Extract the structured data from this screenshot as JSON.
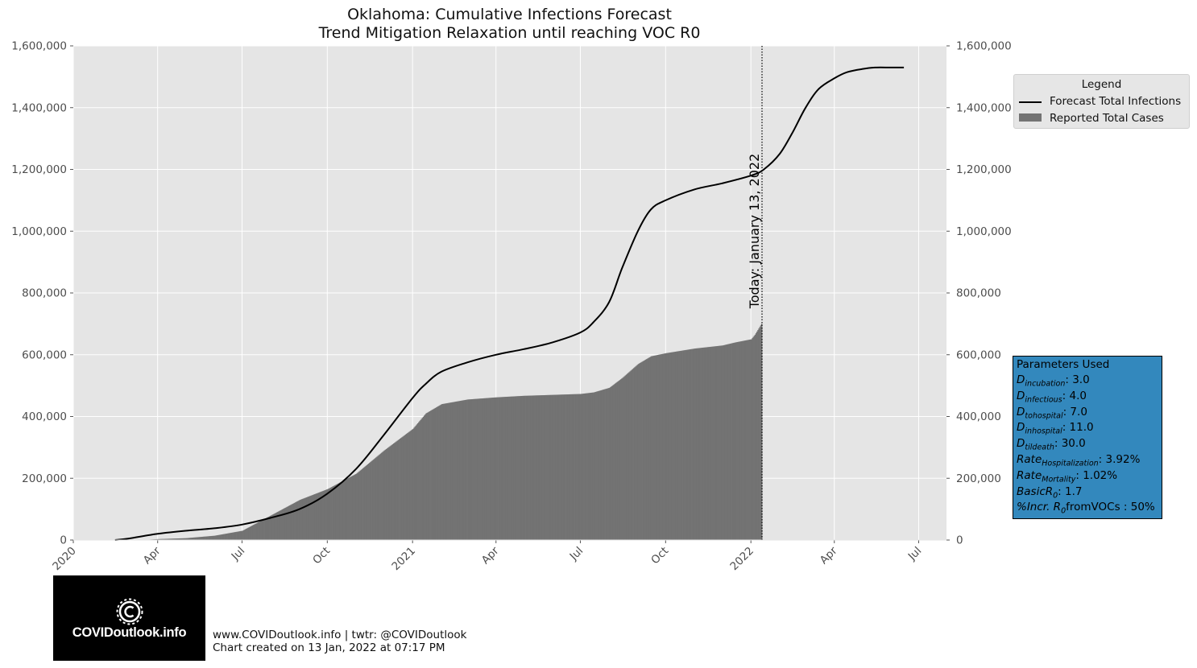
{
  "chart_data": {
    "type": "line",
    "title": "Oklahoma: Cumulative Infections Forecast",
    "subtitle": "Trend Mitigation Relaxation until reaching VOC R0",
    "ylim": [
      0,
      1600000
    ],
    "y_ticks": [
      "0",
      "200,000",
      "400,000",
      "600,000",
      "800,000",
      "1,000,000",
      "1,200,000",
      "1,400,000",
      "1,600,000"
    ],
    "y_tick_values": [
      0,
      200000,
      400000,
      600000,
      800000,
      1000000,
      1200000,
      1400000,
      1600000
    ],
    "x_ticks": [
      "2020",
      "Apr",
      "Jul",
      "Oct",
      "2021",
      "Apr",
      "Jul",
      "Oct",
      "2022",
      "Apr",
      "Jul"
    ],
    "x_tick_dates": [
      "2020-01-01",
      "2020-04-01",
      "2020-07-01",
      "2020-10-01",
      "2021-01-01",
      "2021-04-01",
      "2021-07-01",
      "2021-10-01",
      "2022-01-01",
      "2022-04-01",
      "2022-07-01"
    ],
    "xlim": [
      "2020-01-01",
      "2022-07-31"
    ],
    "grid": true,
    "legend_title": "Legend",
    "legend_position": "right",
    "today_label": "Today: January 13, 2022",
    "today_date": "2022-01-13",
    "series": [
      {
        "name": "Forecast Total Infections",
        "type": "line",
        "color": "#000000",
        "x": [
          "2020-02-15",
          "2020-03-01",
          "2020-04-01",
          "2020-05-01",
          "2020-06-01",
          "2020-07-01",
          "2020-08-01",
          "2020-09-01",
          "2020-10-01",
          "2020-11-01",
          "2020-12-01",
          "2021-01-01",
          "2021-01-15",
          "2021-02-01",
          "2021-03-01",
          "2021-04-01",
          "2021-05-01",
          "2021-06-01",
          "2021-07-01",
          "2021-07-15",
          "2021-08-01",
          "2021-08-15",
          "2021-09-01",
          "2021-09-15",
          "2021-10-01",
          "2021-11-01",
          "2021-12-01",
          "2022-01-01",
          "2022-01-15",
          "2022-02-01",
          "2022-02-15",
          "2022-03-01",
          "2022-03-15",
          "2022-04-01",
          "2022-04-15",
          "2022-05-01",
          "2022-05-15",
          "2022-06-01",
          "2022-06-15"
        ],
        "y": [
          0,
          5000,
          20000,
          30000,
          38000,
          50000,
          72000,
          100000,
          150000,
          230000,
          340000,
          460000,
          505000,
          545000,
          575000,
          600000,
          618000,
          640000,
          672000,
          705000,
          770000,
          880000,
          1000000,
          1070000,
          1100000,
          1135000,
          1155000,
          1180000,
          1200000,
          1250000,
          1320000,
          1400000,
          1460000,
          1495000,
          1515000,
          1525000,
          1530000,
          1530000,
          1530000
        ]
      },
      {
        "name": "Reported Total Cases",
        "type": "bar",
        "color": "#737373",
        "x": [
          "2020-03-15",
          "2020-04-01",
          "2020-05-01",
          "2020-06-01",
          "2020-07-01",
          "2020-08-01",
          "2020-09-01",
          "2020-10-01",
          "2020-11-01",
          "2020-12-01",
          "2021-01-01",
          "2021-01-15",
          "2021-02-01",
          "2021-03-01",
          "2021-04-01",
          "2021-05-01",
          "2021-06-01",
          "2021-07-01",
          "2021-07-15",
          "2021-08-01",
          "2021-08-15",
          "2021-09-01",
          "2021-09-15",
          "2021-10-01",
          "2021-11-01",
          "2021-12-01",
          "2021-12-15",
          "2022-01-01",
          "2022-01-05",
          "2022-01-10",
          "2022-01-12"
        ],
        "y": [
          0,
          3000,
          6000,
          14000,
          30000,
          80000,
          130000,
          165000,
          215000,
          290000,
          360000,
          410000,
          440000,
          455000,
          462000,
          467000,
          470000,
          473000,
          478000,
          493000,
          525000,
          570000,
          595000,
          605000,
          620000,
          630000,
          640000,
          650000,
          665000,
          690000,
          700000
        ]
      }
    ]
  },
  "parameters": {
    "title": "Parameters Used",
    "items": [
      {
        "name": "D",
        "sub": "incubation",
        "value": ": 3.0"
      },
      {
        "name": "D",
        "sub": "infectious",
        "value": ": 4.0"
      },
      {
        "name": "D",
        "sub": "tohospital",
        "value": ": 7.0"
      },
      {
        "name": "D",
        "sub": "inhospital",
        "value": ": 11.0"
      },
      {
        "name": "D",
        "sub": "tildeath",
        "value": ": 30.0"
      },
      {
        "name": "Rate",
        "sub": "Hospitalization",
        "value": ": 3.92%"
      },
      {
        "name": "Rate",
        "sub": "Mortality",
        "value": ": 1.02%"
      },
      {
        "name": "BasicR",
        "sub": "0",
        "value": ": 1.7"
      },
      {
        "name": "%Incr. R",
        "sub": "0",
        "value": "fromVOCs : 50%"
      }
    ]
  },
  "logo_text": "COVIDoutlook.info",
  "footer": {
    "line1": "www.COVIDoutlook.info | twtr: @COVIDoutlook",
    "line2": "Chart created on 13 Jan, 2022 at 07:17 PM"
  },
  "colors": {
    "plot_background": "#e5e5e5",
    "grid": "#ffffff",
    "params_box": "#3388bd",
    "bars": "#737373"
  }
}
